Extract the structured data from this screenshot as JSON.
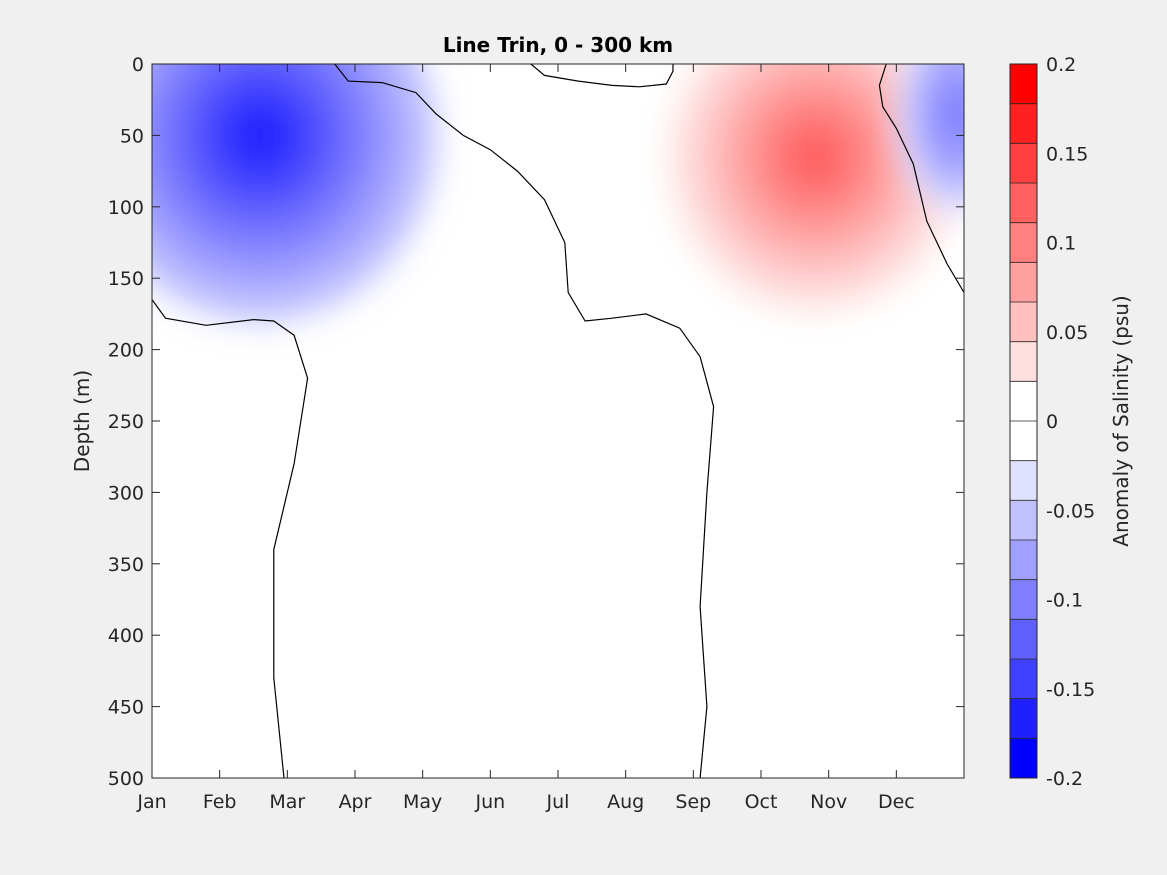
{
  "chart_data": {
    "type": "filled-contour",
    "title": "Line Trin, 0 - 300 km",
    "xlabel": "",
    "ylabel": "Depth (m)",
    "x_ticks": [
      "Jan",
      "Feb",
      "Mar",
      "Apr",
      "May",
      "Jun",
      "Jul",
      "Aug",
      "Sep",
      "Oct",
      "Nov",
      "Dec"
    ],
    "xlim": [
      0,
      12
    ],
    "y_ticks": [
      0,
      50,
      100,
      150,
      200,
      250,
      300,
      350,
      400,
      450,
      500
    ],
    "ylim": [
      0,
      500
    ],
    "y_reversed": true,
    "colorbar": {
      "label": "Anomaly of Salinity (psu)",
      "ticks": [
        "0.2",
        "0.15",
        "0.1",
        "0.05",
        "0",
        "-0.05",
        "-0.1",
        "-0.15",
        "-0.2"
      ],
      "range": [
        -0.2,
        0.2
      ],
      "levels": [
        -0.2,
        -0.175,
        -0.15,
        -0.125,
        -0.1,
        -0.075,
        -0.05,
        -0.025,
        0,
        0.025,
        0.05,
        0.075,
        0.1,
        0.125,
        0.15,
        0.175,
        0.2
      ],
      "colors": [
        "#0000ff",
        "#2020ff",
        "#4040ff",
        "#6060ff",
        "#8080ff",
        "#a0a0ff",
        "#c0c0ff",
        "#e0e0ff",
        "#ffffff",
        "#ffffff",
        "#ffe0e0",
        "#ffc0c0",
        "#ffa0a0",
        "#ff8080",
        "#ff6060",
        "#ff4040",
        "#ff2020",
        "#ff0000"
      ]
    },
    "features": [
      {
        "kind": "negative",
        "min_value": -0.175,
        "center_month": 1.6,
        "center_depth": 50
      },
      {
        "kind": "positive",
        "max_value": 0.15,
        "center_month": 9.8,
        "center_depth": 65
      },
      {
        "kind": "negative",
        "min_value": -0.1,
        "center_month": 11.9,
        "center_depth": 35
      }
    ],
    "zero_contours": [
      {
        "name": "upper-mixed",
        "points": [
          [
            0,
            165
          ],
          [
            0.2,
            178
          ],
          [
            0.8,
            183
          ],
          [
            1.5,
            179
          ],
          [
            1.8,
            180
          ],
          [
            2.1,
            190
          ],
          [
            2.3,
            220
          ],
          [
            2.1,
            280
          ],
          [
            1.8,
            340
          ],
          [
            1.8,
            430
          ],
          [
            1.95,
            500
          ]
        ]
      },
      {
        "name": "central-front",
        "points": [
          [
            2.7,
            0
          ],
          [
            2.9,
            12
          ],
          [
            3.4,
            13
          ],
          [
            3.9,
            20
          ],
          [
            4.2,
            35
          ],
          [
            4.6,
            50
          ],
          [
            5.0,
            60
          ],
          [
            5.4,
            75
          ],
          [
            5.8,
            95
          ],
          [
            6.1,
            125
          ],
          [
            6.15,
            160
          ],
          [
            6.4,
            180
          ],
          [
            6.8,
            178
          ],
          [
            7.3,
            175
          ],
          [
            7.8,
            185
          ],
          [
            8.1,
            205
          ],
          [
            8.3,
            240
          ],
          [
            8.2,
            300
          ],
          [
            8.1,
            380
          ],
          [
            8.2,
            450
          ],
          [
            8.1,
            500
          ]
        ]
      },
      {
        "name": "surface-pocket",
        "points": [
          [
            5.6,
            0
          ],
          [
            5.8,
            8
          ],
          [
            6.3,
            12
          ],
          [
            6.8,
            15
          ],
          [
            7.2,
            16
          ],
          [
            7.6,
            14
          ],
          [
            7.7,
            5
          ],
          [
            7.7,
            0
          ]
        ]
      },
      {
        "name": "east-front",
        "points": [
          [
            10.85,
            0
          ],
          [
            10.75,
            15
          ],
          [
            10.8,
            30
          ],
          [
            11.0,
            45
          ],
          [
            11.25,
            70
          ],
          [
            11.45,
            110
          ],
          [
            11.75,
            140
          ],
          [
            12,
            160
          ]
        ]
      }
    ]
  }
}
